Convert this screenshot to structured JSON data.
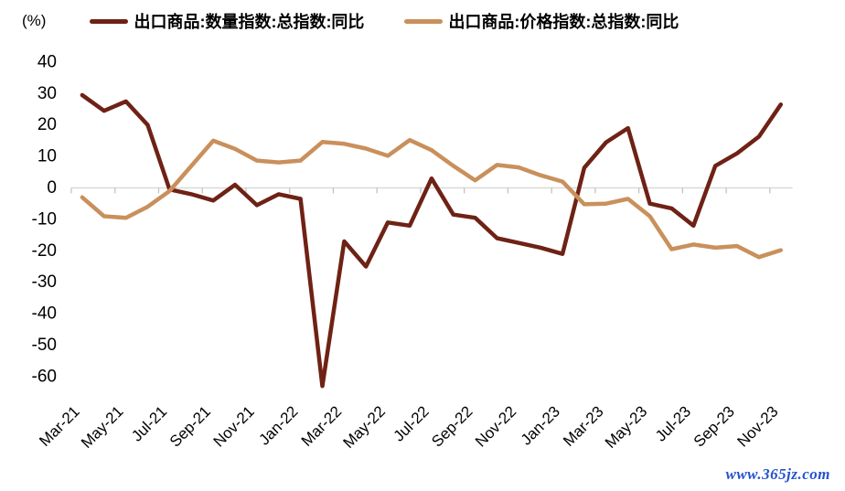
{
  "unit_label": "(%)",
  "watermark": "www.365jz.com",
  "colors": {
    "quantity_line": "#6E2215",
    "price_line": "#C9905C",
    "zero_line": "#D9D9D9",
    "tick": "#BFBFBF",
    "text": "#000000",
    "watermark": "#2553CE"
  },
  "chart_data": {
    "type": "line",
    "title": "",
    "xlabel": "",
    "ylabel": "(%)",
    "ylim": [
      -60,
      40
    ],
    "y_ticks": [
      40,
      30,
      20,
      10,
      0,
      -10,
      -20,
      -30,
      -40,
      -50,
      -60
    ],
    "grid": "zero-line-only",
    "legend_position": "top",
    "x": [
      "Mar-21",
      "Apr-21",
      "May-21",
      "Jun-21",
      "Jul-21",
      "Aug-21",
      "Sep-21",
      "Oct-21",
      "Nov-21",
      "Dec-21",
      "Jan-22",
      "Feb-22",
      "Mar-22",
      "Apr-22",
      "May-22",
      "Jun-22",
      "Jul-22",
      "Aug-22",
      "Sep-22",
      "Oct-22",
      "Nov-22",
      "Dec-22",
      "Jan-23",
      "Feb-23",
      "Mar-23",
      "Apr-23",
      "May-23",
      "Jun-23",
      "Jul-23",
      "Aug-23",
      "Sep-23",
      "Oct-23",
      "Nov-23"
    ],
    "x_tick_labels": [
      "Mar-21",
      "May-21",
      "Jul-21",
      "Sep-21",
      "Nov-21",
      "Jan-22",
      "Mar-22",
      "May-22",
      "Jul-22",
      "Sep-22",
      "Nov-22",
      "Jan-23",
      "Mar-23",
      "May-23",
      "Jul-23",
      "Sep-23",
      "Nov-23"
    ],
    "series": [
      {
        "name": "出口商品:数量指数:总指数:同比",
        "color": "#6E2215",
        "values": [
          29.5,
          24.5,
          27.5,
          20,
          -0.5,
          -2,
          -4,
          1,
          -5.5,
          -2,
          -3.5,
          -63,
          -17,
          -25,
          -11,
          -12,
          3,
          -8.5,
          -9.5,
          -16,
          -17.5,
          -19,
          -21,
          6.4,
          14.5,
          19,
          -5,
          -6.5,
          -12,
          7,
          11,
          16.3,
          26.5
        ]
      },
      {
        "name": "出口商品:价格指数:总指数:同比",
        "color": "#C9905C",
        "values": [
          -3,
          -9,
          -9.5,
          -6,
          -1,
          7,
          15,
          12.4,
          8.7,
          8.1,
          8.7,
          14.6,
          14,
          12.5,
          10.2,
          15.2,
          12,
          7,
          2.4,
          7.3,
          6.5,
          4,
          2,
          -5.2,
          -5,
          -3.5,
          -9,
          -19.5,
          -18,
          -19,
          -18.5,
          -22,
          -19.8
        ]
      }
    ]
  }
}
